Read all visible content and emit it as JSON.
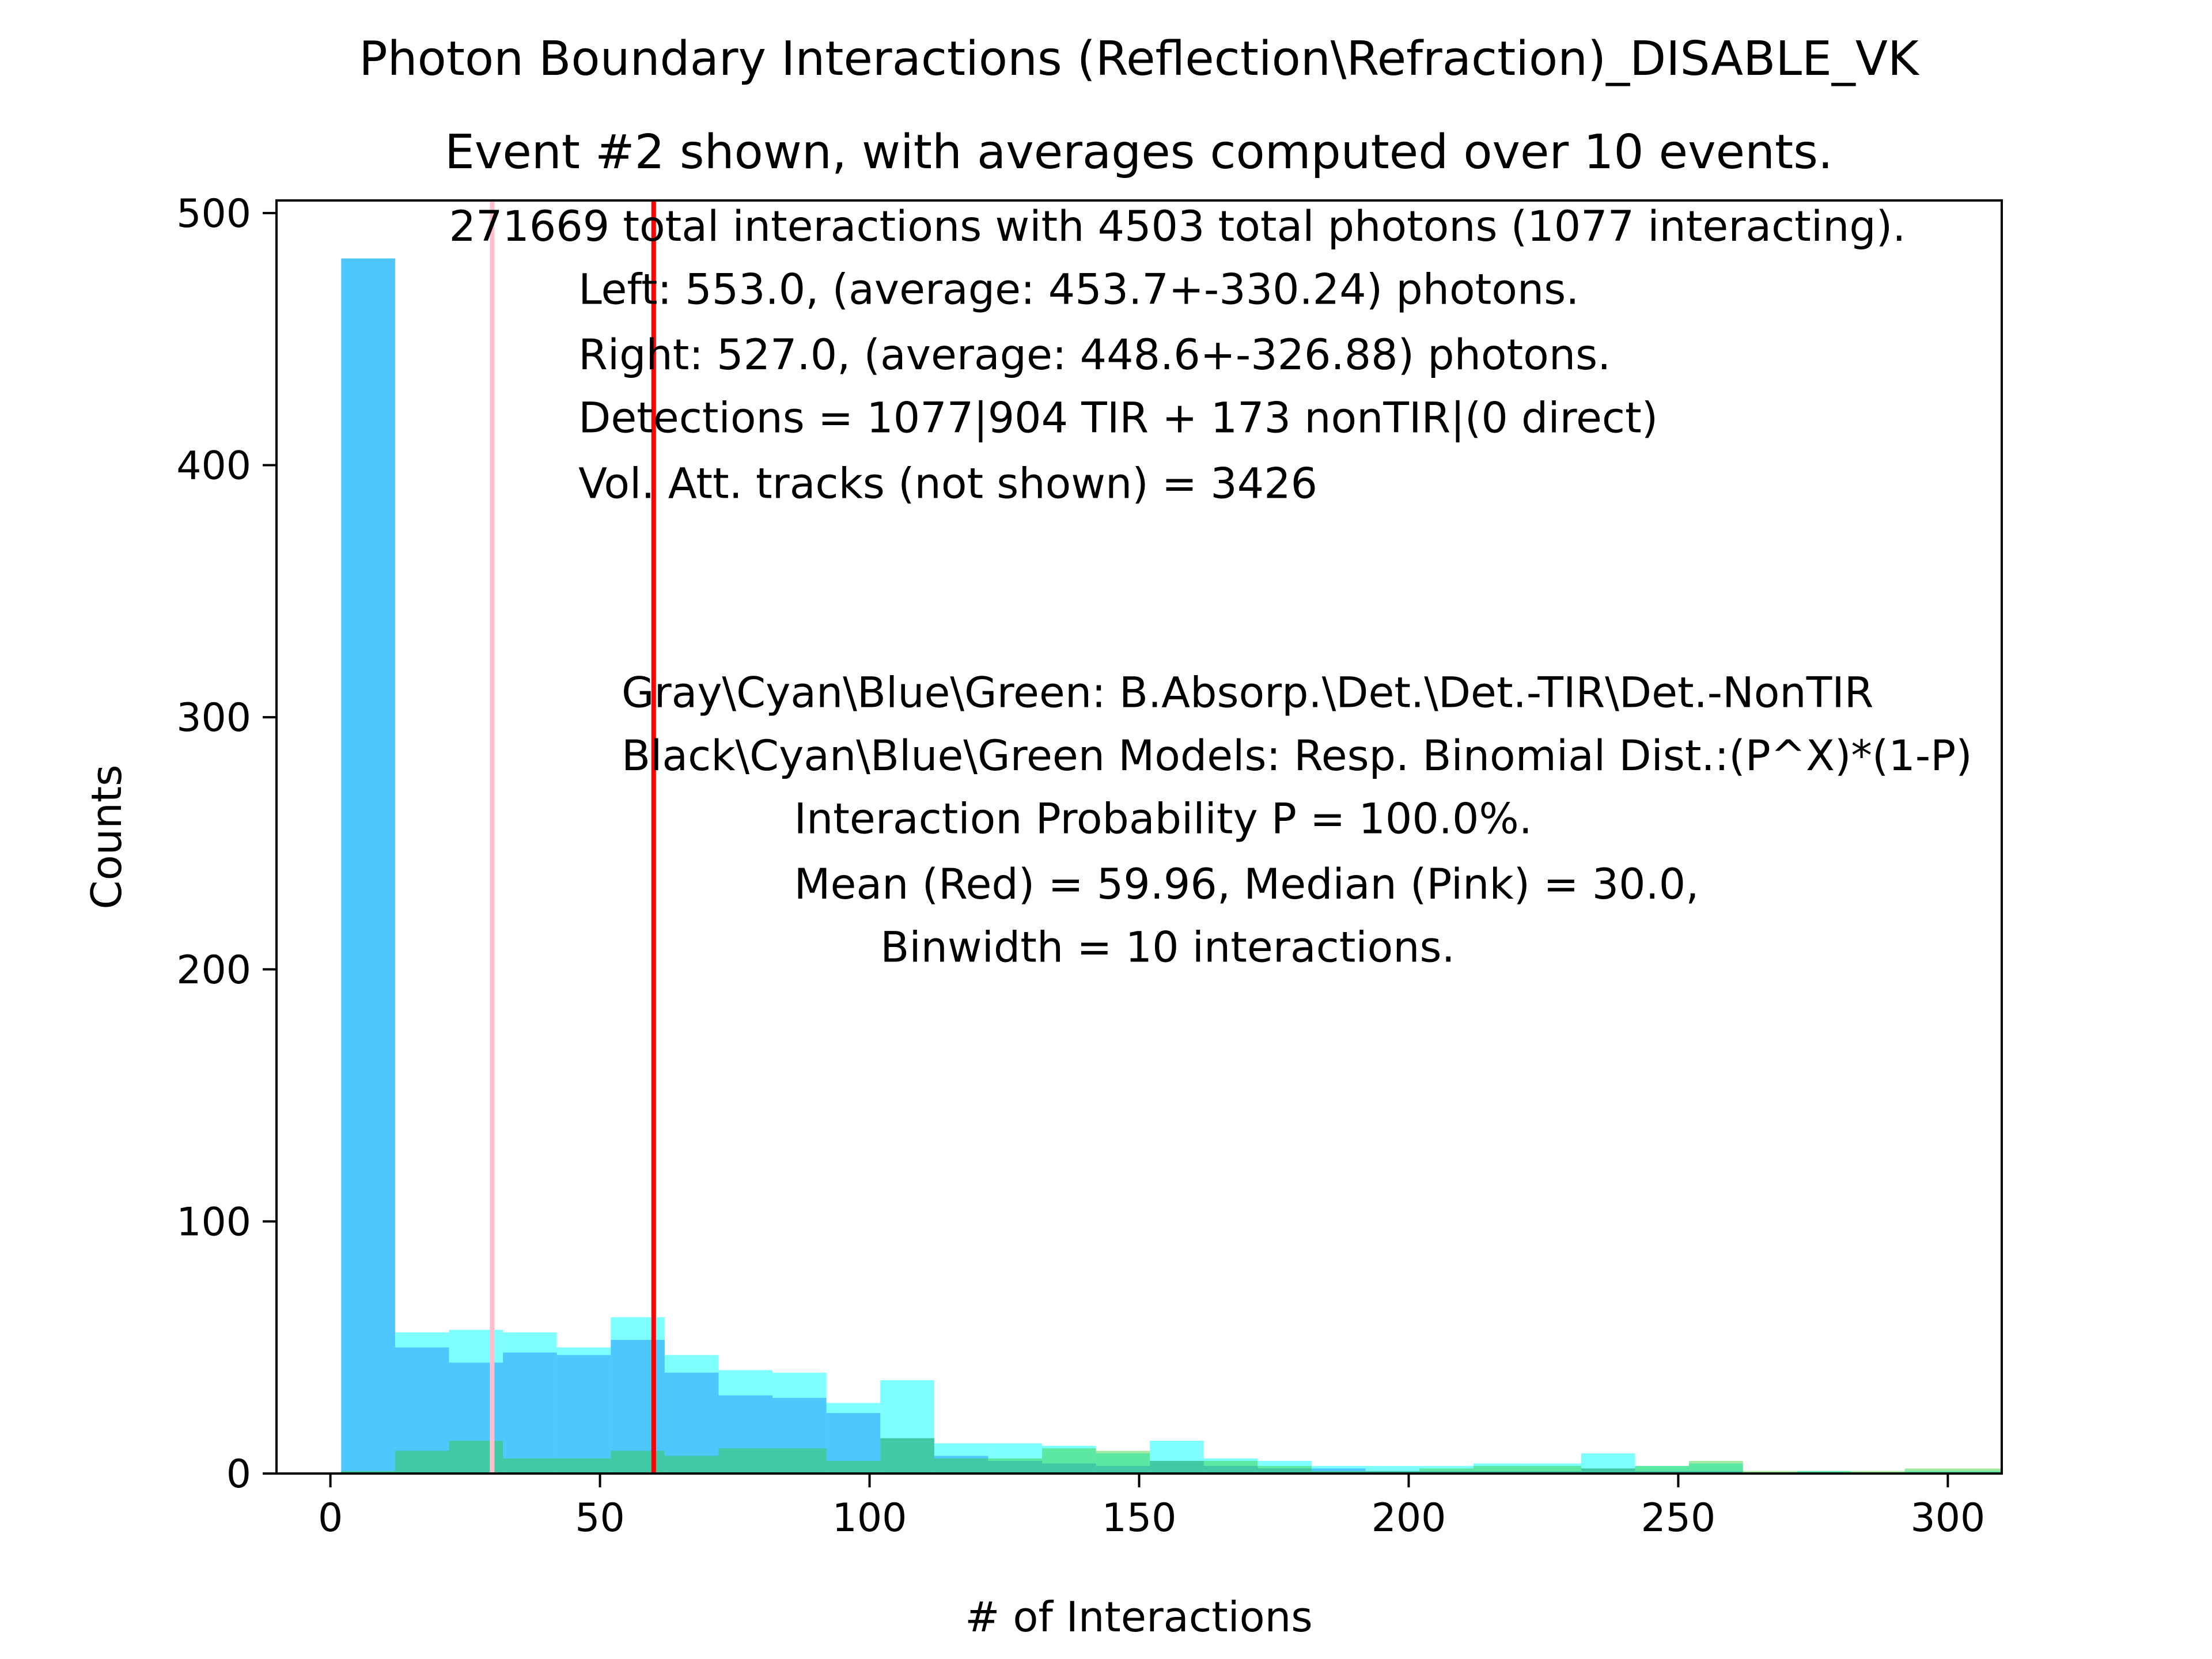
{
  "chart_data": {
    "type": "bar",
    "title": "Photon Boundary Interactions (Reflection\\Refraction)_DISABLE_VK",
    "subtitle": "Event #2 shown, with averages computed over 10 events.",
    "xlabel": "# of Interactions",
    "ylabel": "Counts",
    "xlim": [
      -10,
      310
    ],
    "ylim": [
      0,
      505
    ],
    "xticks": [
      0,
      50,
      100,
      150,
      200,
      250,
      300
    ],
    "yticks": [
      0,
      100,
      200,
      300,
      400,
      500
    ],
    "grid": false,
    "legend": "none",
    "series": [
      {
        "color": "#00ffff",
        "opacity": 0.5,
        "bins": [
          [
            2,
            12,
            482
          ],
          [
            12,
            22,
            56
          ],
          [
            22,
            32,
            57
          ],
          [
            32,
            42,
            56
          ],
          [
            42,
            52,
            50
          ],
          [
            52,
            62,
            62
          ],
          [
            62,
            72,
            47
          ],
          [
            72,
            82,
            41
          ],
          [
            82,
            92,
            40
          ],
          [
            92,
            102,
            28
          ],
          [
            102,
            112,
            37
          ],
          [
            112,
            122,
            12
          ],
          [
            122,
            132,
            12
          ],
          [
            132,
            142,
            11
          ],
          [
            142,
            152,
            8
          ],
          [
            152,
            162,
            13
          ],
          [
            162,
            172,
            6
          ],
          [
            172,
            182,
            5
          ],
          [
            182,
            192,
            3
          ],
          [
            192,
            202,
            3
          ],
          [
            202,
            212,
            3
          ],
          [
            212,
            222,
            4
          ],
          [
            222,
            232,
            4
          ],
          [
            232,
            242,
            8
          ],
          [
            242,
            252,
            3
          ],
          [
            252,
            262,
            4
          ],
          [
            262,
            272,
            0
          ],
          [
            272,
            282,
            1
          ],
          [
            282,
            292,
            0
          ],
          [
            292,
            302,
            1
          ],
          [
            302,
            312,
            1
          ]
        ]
      },
      {
        "color": "#1e90ff",
        "opacity": 0.5,
        "bins": [
          [
            2,
            12,
            482
          ],
          [
            12,
            22,
            50
          ],
          [
            22,
            32,
            44
          ],
          [
            32,
            42,
            48
          ],
          [
            42,
            52,
            47
          ],
          [
            52,
            62,
            53
          ],
          [
            62,
            72,
            40
          ],
          [
            72,
            82,
            31
          ],
          [
            82,
            92,
            30
          ],
          [
            92,
            102,
            24
          ],
          [
            102,
            112,
            14
          ],
          [
            112,
            122,
            7
          ],
          [
            122,
            132,
            5
          ],
          [
            132,
            142,
            4
          ],
          [
            142,
            152,
            3
          ],
          [
            152,
            162,
            5
          ],
          [
            162,
            172,
            3
          ],
          [
            172,
            182,
            2
          ],
          [
            182,
            192,
            2
          ],
          [
            192,
            202,
            1
          ],
          [
            202,
            212,
            1
          ],
          [
            212,
            222,
            1
          ],
          [
            222,
            232,
            1
          ],
          [
            232,
            242,
            2
          ],
          [
            242,
            252,
            1
          ],
          [
            252,
            262,
            1
          ],
          [
            262,
            272,
            0
          ],
          [
            272,
            282,
            0
          ],
          [
            282,
            292,
            0
          ],
          [
            292,
            302,
            0
          ],
          [
            302,
            312,
            0
          ]
        ]
      },
      {
        "color": "#32cd32",
        "opacity": 0.45,
        "bins": [
          [
            2,
            12,
            1
          ],
          [
            12,
            22,
            9
          ],
          [
            22,
            32,
            13
          ],
          [
            32,
            42,
            6
          ],
          [
            42,
            52,
            6
          ],
          [
            52,
            62,
            9
          ],
          [
            62,
            72,
            7
          ],
          [
            72,
            82,
            10
          ],
          [
            82,
            92,
            10
          ],
          [
            92,
            102,
            5
          ],
          [
            102,
            112,
            14
          ],
          [
            112,
            122,
            6
          ],
          [
            122,
            132,
            6
          ],
          [
            132,
            142,
            10
          ],
          [
            142,
            152,
            9
          ],
          [
            152,
            162,
            5
          ],
          [
            162,
            172,
            5
          ],
          [
            172,
            182,
            3
          ],
          [
            182,
            192,
            1
          ],
          [
            192,
            202,
            1
          ],
          [
            202,
            212,
            2
          ],
          [
            212,
            222,
            3
          ],
          [
            222,
            232,
            3
          ],
          [
            232,
            242,
            2
          ],
          [
            242,
            252,
            3
          ],
          [
            252,
            262,
            5
          ],
          [
            262,
            272,
            1
          ],
          [
            272,
            282,
            1
          ],
          [
            282,
            292,
            1
          ],
          [
            292,
            302,
            2
          ],
          [
            302,
            312,
            2
          ]
        ]
      }
    ],
    "vlines": [
      {
        "x": 30.0,
        "color": "#ffc0cb"
      },
      {
        "x": 59.96,
        "color": "#ff0000"
      }
    ],
    "annotations": [
      {
        "text": "271669 total interactions with 4503 total photons (1077 interacting).",
        "x": 22,
        "y": 489
      },
      {
        "text": "Left: 553.0, (average: 453.7+-330.24) photons.",
        "x": 46,
        "y": 464
      },
      {
        "text": "Right: 527.0, (average: 448.6+-326.88) photons.",
        "x": 46,
        "y": 438
      },
      {
        "text": "Detections = 1077|904 TIR + 173 nonTIR|(0 direct)",
        "x": 46,
        "y": 413
      },
      {
        "text": "Vol. Att. tracks (not shown) = 3426",
        "x": 46,
        "y": 387
      },
      {
        "text": "Gray\\Cyan\\Blue\\Green: B.Absorp.\\Det.\\Det.-TIR\\Det.-NonTIR",
        "x": 54,
        "y": 304
      },
      {
        "text": "Black\\Cyan\\Blue\\Green Models: Resp. Binomial Dist.:(P^X)*(1-P)",
        "x": 54,
        "y": 279
      },
      {
        "text": "Interaction Probability P = 100.0%.",
        "x": 86,
        "y": 254
      },
      {
        "text": "Mean (Red) = 59.96, Median (Pink) = 30.0,",
        "x": 86,
        "y": 228
      },
      {
        "text": "Binwidth = 10 interactions.",
        "x": 102,
        "y": 203
      }
    ]
  }
}
